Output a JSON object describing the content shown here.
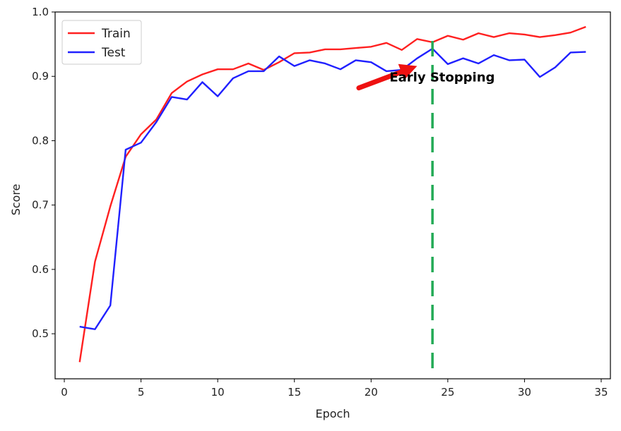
{
  "chart_data": {
    "type": "line",
    "title": "",
    "xlabel": "Epoch",
    "ylabel": "Score",
    "xlim": [
      -0.6,
      35.6
    ],
    "ylim": [
      0.43,
      1.0
    ],
    "xticks": [
      0,
      5,
      10,
      15,
      20,
      25,
      30,
      35
    ],
    "yticks": [
      0.5,
      0.6,
      0.7,
      0.8,
      0.9,
      1.0
    ],
    "xtick_labels": [
      "0",
      "5",
      "10",
      "15",
      "20",
      "25",
      "30",
      "35"
    ],
    "ytick_labels": [
      "0.5",
      "0.6",
      "0.7",
      "0.8",
      "0.9",
      "1.0"
    ],
    "grid": false,
    "legend_position": "top-left",
    "x": [
      1,
      2,
      3,
      4,
      5,
      6,
      7,
      8,
      9,
      10,
      11,
      12,
      13,
      14,
      15,
      16,
      17,
      18,
      19,
      20,
      21,
      22,
      23,
      24,
      25,
      26,
      27,
      28,
      29,
      30,
      31,
      32,
      33,
      34
    ],
    "series": [
      {
        "name": "Train",
        "color": "#ff2020",
        "values": [
          0.456,
          0.612,
          0.698,
          0.775,
          0.81,
          0.833,
          0.874,
          0.892,
          0.903,
          0.911,
          0.911,
          0.92,
          0.91,
          0.922,
          0.936,
          0.937,
          0.942,
          0.942,
          0.944,
          0.946,
          0.952,
          0.941,
          0.958,
          0.953,
          0.963,
          0.957,
          0.967,
          0.961,
          0.967,
          0.965,
          0.961,
          0.964,
          0.968,
          0.977
        ]
      },
      {
        "name": "Test",
        "color": "#2020ff",
        "values": [
          0.511,
          0.507,
          0.544,
          0.786,
          0.797,
          0.829,
          0.868,
          0.864,
          0.891,
          0.869,
          0.897,
          0.908,
          0.908,
          0.931,
          0.916,
          0.925,
          0.92,
          0.911,
          0.925,
          0.922,
          0.908,
          0.91,
          0.928,
          0.943,
          0.919,
          0.928,
          0.92,
          0.933,
          0.925,
          0.926,
          0.899,
          0.914,
          0.937,
          0.938
        ]
      }
    ],
    "annotations": [
      {
        "text": "Early Stopping",
        "marker": "vertical-dashed-line",
        "x": 24,
        "y_top": 0.955,
        "y_bottom": 0.445,
        "color": "#22aa55",
        "arrow_color": "#ee1111",
        "arrow_from": [
          19.2,
          0.882
        ],
        "arrow_to": [
          23.0,
          0.916
        ],
        "text_x": 21.2,
        "text_y": 0.892
      }
    ]
  }
}
